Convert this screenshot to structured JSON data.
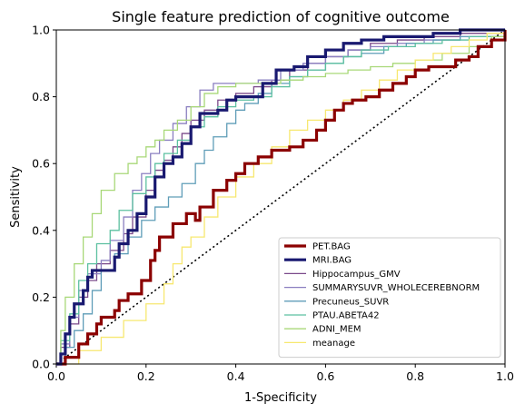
{
  "chart_data": {
    "type": "line",
    "title": "Single feature prediction of cognitive outcome",
    "xlabel": "1-Specificity",
    "ylabel": "Sensitivity",
    "xlim": [
      0,
      1
    ],
    "ylim": [
      0,
      1
    ],
    "xticks": [
      "0.0",
      "0.2",
      "0.4",
      "0.6",
      "0.8",
      "1.0"
    ],
    "yticks": [
      "0.0",
      "0.2",
      "0.4",
      "0.6",
      "0.8",
      "1.0"
    ],
    "grid": false,
    "legend_position": "lower-right",
    "reference_line": {
      "style": "dotted",
      "color": "#000000",
      "points": [
        [
          0,
          0
        ],
        [
          1,
          1
        ]
      ]
    },
    "series": [
      {
        "name": "PET.BAG",
        "color": "#8b0000",
        "width": "thick",
        "points": [
          [
            0,
            0
          ],
          [
            0.02,
            0.02
          ],
          [
            0.05,
            0.06
          ],
          [
            0.07,
            0.09
          ],
          [
            0.09,
            0.12
          ],
          [
            0.1,
            0.14
          ],
          [
            0.13,
            0.16
          ],
          [
            0.14,
            0.19
          ],
          [
            0.16,
            0.21
          ],
          [
            0.19,
            0.25
          ],
          [
            0.21,
            0.31
          ],
          [
            0.22,
            0.34
          ],
          [
            0.23,
            0.38
          ],
          [
            0.26,
            0.42
          ],
          [
            0.29,
            0.45
          ],
          [
            0.31,
            0.43
          ],
          [
            0.32,
            0.47
          ],
          [
            0.35,
            0.52
          ],
          [
            0.38,
            0.55
          ],
          [
            0.4,
            0.57
          ],
          [
            0.42,
            0.6
          ],
          [
            0.45,
            0.62
          ],
          [
            0.48,
            0.64
          ],
          [
            0.52,
            0.65
          ],
          [
            0.55,
            0.67
          ],
          [
            0.58,
            0.7
          ],
          [
            0.6,
            0.73
          ],
          [
            0.62,
            0.76
          ],
          [
            0.64,
            0.78
          ],
          [
            0.66,
            0.79
          ],
          [
            0.69,
            0.8
          ],
          [
            0.72,
            0.82
          ],
          [
            0.75,
            0.84
          ],
          [
            0.78,
            0.86
          ],
          [
            0.8,
            0.88
          ],
          [
            0.83,
            0.89
          ],
          [
            0.86,
            0.89
          ],
          [
            0.89,
            0.91
          ],
          [
            0.92,
            0.92
          ],
          [
            0.94,
            0.95
          ],
          [
            0.97,
            0.97
          ],
          [
            1.0,
            1.0
          ]
        ]
      },
      {
        "name": "MRI.BAG",
        "color": "#191970",
        "width": "thick",
        "points": [
          [
            0,
            0
          ],
          [
            0.01,
            0.03
          ],
          [
            0.02,
            0.09
          ],
          [
            0.03,
            0.14
          ],
          [
            0.04,
            0.18
          ],
          [
            0.06,
            0.22
          ],
          [
            0.07,
            0.26
          ],
          [
            0.08,
            0.28
          ],
          [
            0.12,
            0.28
          ],
          [
            0.13,
            0.32
          ],
          [
            0.14,
            0.36
          ],
          [
            0.16,
            0.4
          ],
          [
            0.18,
            0.45
          ],
          [
            0.2,
            0.5
          ],
          [
            0.22,
            0.56
          ],
          [
            0.24,
            0.6
          ],
          [
            0.26,
            0.62
          ],
          [
            0.28,
            0.66
          ],
          [
            0.3,
            0.71
          ],
          [
            0.32,
            0.75
          ],
          [
            0.36,
            0.76
          ],
          [
            0.38,
            0.79
          ],
          [
            0.4,
            0.8
          ],
          [
            0.43,
            0.8
          ],
          [
            0.46,
            0.84
          ],
          [
            0.49,
            0.88
          ],
          [
            0.53,
            0.89
          ],
          [
            0.56,
            0.92
          ],
          [
            0.6,
            0.94
          ],
          [
            0.64,
            0.96
          ],
          [
            0.68,
            0.97
          ],
          [
            0.73,
            0.98
          ],
          [
            0.78,
            0.98
          ],
          [
            0.84,
            0.99
          ],
          [
            0.9,
            1.0
          ],
          [
            1.0,
            1.0
          ]
        ]
      },
      {
        "name": "Hippocampus_GMV",
        "color": "#7b4a8a",
        "width": "thin",
        "points": [
          [
            0,
            0
          ],
          [
            0.01,
            0.05
          ],
          [
            0.03,
            0.12
          ],
          [
            0.05,
            0.2
          ],
          [
            0.07,
            0.25
          ],
          [
            0.09,
            0.3
          ],
          [
            0.12,
            0.34
          ],
          [
            0.15,
            0.39
          ],
          [
            0.17,
            0.44
          ],
          [
            0.2,
            0.52
          ],
          [
            0.22,
            0.58
          ],
          [
            0.24,
            0.61
          ],
          [
            0.26,
            0.65
          ],
          [
            0.28,
            0.69
          ],
          [
            0.3,
            0.73
          ],
          [
            0.33,
            0.76
          ],
          [
            0.36,
            0.79
          ],
          [
            0.4,
            0.81
          ],
          [
            0.44,
            0.83
          ],
          [
            0.48,
            0.85
          ],
          [
            0.52,
            0.88
          ],
          [
            0.56,
            0.9
          ],
          [
            0.6,
            0.92
          ],
          [
            0.65,
            0.94
          ],
          [
            0.7,
            0.96
          ],
          [
            0.76,
            0.97
          ],
          [
            0.82,
            0.98
          ],
          [
            0.9,
            0.99
          ],
          [
            1.0,
            1.0
          ]
        ]
      },
      {
        "name": "SUMMARYSUVR_WHOLECEREBNORM",
        "color": "#8a7fc0",
        "width": "thin",
        "points": [
          [
            0,
            0
          ],
          [
            0.01,
            0.06
          ],
          [
            0.03,
            0.14
          ],
          [
            0.05,
            0.22
          ],
          [
            0.07,
            0.27
          ],
          [
            0.1,
            0.31
          ],
          [
            0.12,
            0.37
          ],
          [
            0.15,
            0.44
          ],
          [
            0.17,
            0.52
          ],
          [
            0.19,
            0.57
          ],
          [
            0.21,
            0.63
          ],
          [
            0.23,
            0.67
          ],
          [
            0.26,
            0.72
          ],
          [
            0.29,
            0.77
          ],
          [
            0.32,
            0.82
          ],
          [
            0.35,
            0.84
          ],
          [
            0.4,
            0.84
          ],
          [
            0.45,
            0.85
          ],
          [
            0.5,
            0.88
          ],
          [
            0.55,
            0.9
          ],
          [
            0.6,
            0.92
          ],
          [
            0.65,
            0.94
          ],
          [
            0.7,
            0.95
          ],
          [
            0.76,
            0.96
          ],
          [
            0.82,
            0.97
          ],
          [
            0.9,
            0.98
          ],
          [
            1.0,
            1.0
          ]
        ]
      },
      {
        "name": "Precuneus_SUVR",
        "color": "#5f9db8",
        "width": "thin",
        "points": [
          [
            0,
            0
          ],
          [
            0.02,
            0.05
          ],
          [
            0.04,
            0.1
          ],
          [
            0.06,
            0.15
          ],
          [
            0.08,
            0.22
          ],
          [
            0.1,
            0.28
          ],
          [
            0.13,
            0.33
          ],
          [
            0.16,
            0.38
          ],
          [
            0.19,
            0.43
          ],
          [
            0.22,
            0.47
          ],
          [
            0.25,
            0.5
          ],
          [
            0.28,
            0.54
          ],
          [
            0.31,
            0.6
          ],
          [
            0.33,
            0.64
          ],
          [
            0.35,
            0.68
          ],
          [
            0.38,
            0.72
          ],
          [
            0.4,
            0.76
          ],
          [
            0.42,
            0.78
          ],
          [
            0.45,
            0.81
          ],
          [
            0.48,
            0.84
          ],
          [
            0.52,
            0.86
          ],
          [
            0.56,
            0.88
          ],
          [
            0.6,
            0.9
          ],
          [
            0.64,
            0.92
          ],
          [
            0.68,
            0.93
          ],
          [
            0.73,
            0.95
          ],
          [
            0.78,
            0.96
          ],
          [
            0.84,
            0.97
          ],
          [
            0.9,
            0.98
          ],
          [
            1.0,
            1.0
          ]
        ]
      },
      {
        "name": "PTAU.ABETA42",
        "color": "#5cc0a0",
        "width": "thin",
        "points": [
          [
            0,
            0
          ],
          [
            0.01,
            0.07
          ],
          [
            0.03,
            0.15
          ],
          [
            0.05,
            0.25
          ],
          [
            0.07,
            0.3
          ],
          [
            0.09,
            0.36
          ],
          [
            0.12,
            0.4
          ],
          [
            0.14,
            0.46
          ],
          [
            0.17,
            0.51
          ],
          [
            0.2,
            0.56
          ],
          [
            0.22,
            0.6
          ],
          [
            0.24,
            0.63
          ],
          [
            0.27,
            0.67
          ],
          [
            0.3,
            0.71
          ],
          [
            0.33,
            0.74
          ],
          [
            0.36,
            0.77
          ],
          [
            0.4,
            0.79
          ],
          [
            0.44,
            0.8
          ],
          [
            0.48,
            0.83
          ],
          [
            0.52,
            0.86
          ],
          [
            0.56,
            0.88
          ],
          [
            0.6,
            0.9
          ],
          [
            0.64,
            0.92
          ],
          [
            0.68,
            0.94
          ],
          [
            0.74,
            0.95
          ],
          [
            0.8,
            0.96
          ],
          [
            0.86,
            0.97
          ],
          [
            0.92,
            0.98
          ],
          [
            1.0,
            1.0
          ]
        ]
      },
      {
        "name": "ADNI_MEM",
        "color": "#a8d878",
        "width": "thin",
        "points": [
          [
            0,
            0
          ],
          [
            0.01,
            0.1
          ],
          [
            0.02,
            0.2
          ],
          [
            0.04,
            0.3
          ],
          [
            0.06,
            0.38
          ],
          [
            0.08,
            0.45
          ],
          [
            0.1,
            0.52
          ],
          [
            0.13,
            0.57
          ],
          [
            0.16,
            0.6
          ],
          [
            0.18,
            0.62
          ],
          [
            0.2,
            0.65
          ],
          [
            0.22,
            0.67
          ],
          [
            0.24,
            0.7
          ],
          [
            0.27,
            0.73
          ],
          [
            0.3,
            0.77
          ],
          [
            0.33,
            0.81
          ],
          [
            0.36,
            0.83
          ],
          [
            0.4,
            0.84
          ],
          [
            0.45,
            0.84
          ],
          [
            0.5,
            0.85
          ],
          [
            0.55,
            0.86
          ],
          [
            0.6,
            0.87
          ],
          [
            0.65,
            0.88
          ],
          [
            0.7,
            0.89
          ],
          [
            0.75,
            0.9
          ],
          [
            0.8,
            0.91
          ],
          [
            0.86,
            0.93
          ],
          [
            0.92,
            0.95
          ],
          [
            0.97,
            0.98
          ],
          [
            1.0,
            1.0
          ]
        ]
      },
      {
        "name": "meanage",
        "color": "#f7e870",
        "width": "thin",
        "points": [
          [
            0,
            0
          ],
          [
            0.05,
            0.04
          ],
          [
            0.1,
            0.08
          ],
          [
            0.15,
            0.13
          ],
          [
            0.2,
            0.18
          ],
          [
            0.24,
            0.24
          ],
          [
            0.26,
            0.3
          ],
          [
            0.28,
            0.35
          ],
          [
            0.3,
            0.38
          ],
          [
            0.33,
            0.44
          ],
          [
            0.36,
            0.5
          ],
          [
            0.4,
            0.56
          ],
          [
            0.44,
            0.6
          ],
          [
            0.48,
            0.65
          ],
          [
            0.52,
            0.7
          ],
          [
            0.56,
            0.73
          ],
          [
            0.6,
            0.76
          ],
          [
            0.64,
            0.79
          ],
          [
            0.68,
            0.82
          ],
          [
            0.72,
            0.85
          ],
          [
            0.76,
            0.88
          ],
          [
            0.8,
            0.91
          ],
          [
            0.84,
            0.93
          ],
          [
            0.88,
            0.95
          ],
          [
            0.92,
            0.97
          ],
          [
            0.96,
            0.99
          ],
          [
            1.0,
            1.0
          ]
        ]
      }
    ]
  }
}
